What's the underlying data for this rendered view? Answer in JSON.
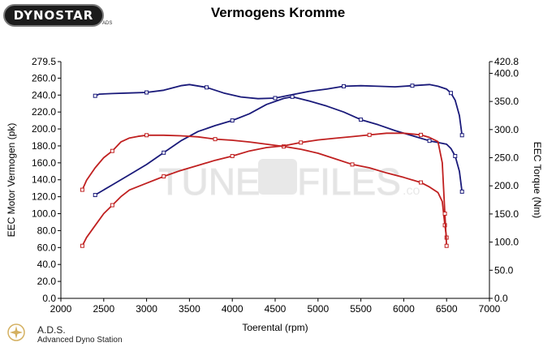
{
  "header": {
    "logo_text": "DYNOSTAR",
    "logo_sub": "ADS",
    "title": "Vermogens Kromme"
  },
  "footer": {
    "brand": "A.D.S.",
    "brand_sub": "Advanced Dyno Station"
  },
  "watermark": {
    "left": "TUNE",
    "right": "FILES",
    "suffix": ".co"
  },
  "chart_data": {
    "type": "line",
    "title": "Vermogens Kromme",
    "xlabel": "Toerental (rpm)",
    "ylabel": "EEC Motor Vermogen (pk)",
    "y2label": "EEC Torque (Nm)",
    "xlim": [
      2000,
      7000
    ],
    "ylim": [
      0,
      279.5
    ],
    "y2lim": [
      0,
      420.8
    ],
    "xticks": [
      "2000",
      "2500",
      "3000",
      "3500",
      "4000",
      "4500",
      "5000",
      "5500",
      "6000",
      "6500",
      "7000"
    ],
    "yticks": [
      "0.0",
      "20.0",
      "40.0",
      "60.0",
      "80.0",
      "100.0",
      "120.0",
      "140.0",
      "160.0",
      "180.0",
      "200.0",
      "220.0",
      "240.0",
      "260.0",
      "279.5"
    ],
    "y2ticks": [
      "0.0",
      "50.0",
      "100.0",
      "150.0",
      "200.0",
      "250.0",
      "300.0",
      "350.0",
      "400.0",
      "420.8"
    ],
    "grid": false,
    "series": [
      {
        "axis": "y2",
        "color": "#1a1a7a",
        "x": [
          2400,
          2450,
          2600,
          2800,
          3000,
          3200,
          3400,
          3500,
          3700,
          3900,
          4100,
          4300,
          4500,
          4700,
          4900,
          5100,
          5300,
          5500,
          5700,
          5900,
          6100,
          6300,
          6400,
          6500,
          6550,
          6600,
          6650,
          6680
        ],
        "y": [
          360,
          363,
          364,
          365,
          366,
          370,
          378,
          380,
          375,
          365,
          358,
          355,
          356,
          362,
          368,
          372,
          377,
          378,
          377,
          376,
          378,
          380,
          377,
          372,
          365,
          352,
          325,
          290
        ]
      },
      {
        "axis": "y",
        "color": "#1a1a7a",
        "x": [
          2400,
          2600,
          2800,
          3000,
          3200,
          3400,
          3600,
          3800,
          4000,
          4200,
          4400,
          4600,
          4700,
          4900,
          5100,
          5300,
          5500,
          5700,
          5900,
          6100,
          6300,
          6400,
          6500,
          6550,
          6600,
          6650,
          6680
        ],
        "y": [
          122,
          134,
          146,
          158,
          172,
          186,
          197,
          204,
          210,
          218,
          229,
          236,
          238,
          233,
          227,
          220,
          211,
          205,
          198,
          192,
          186,
          184,
          182,
          177,
          168,
          150,
          126
        ]
      },
      {
        "axis": "y2",
        "color": "#c02020",
        "x": [
          2250,
          2300,
          2400,
          2500,
          2600,
          2700,
          2800,
          2900,
          3000,
          3200,
          3400,
          3600,
          3800,
          4000,
          4200,
          4400,
          4600,
          4800,
          5000,
          5200,
          5400,
          5600,
          5800,
          6000,
          6200,
          6300,
          6400,
          6450,
          6480,
          6500
        ],
        "y": [
          193,
          210,
          232,
          250,
          262,
          278,
          285,
          288,
          290,
          290,
          289,
          287,
          283,
          281,
          278,
          274,
          270,
          265,
          258,
          248,
          238,
          232,
          223,
          215,
          206,
          198,
          188,
          172,
          130,
          108
        ]
      },
      {
        "axis": "y",
        "color": "#c02020",
        "x": [
          2250,
          2300,
          2400,
          2500,
          2600,
          2700,
          2800,
          3000,
          3200,
          3400,
          3600,
          3800,
          4000,
          4200,
          4400,
          4600,
          4800,
          5000,
          5200,
          5400,
          5600,
          5800,
          6000,
          6100,
          6200,
          6300,
          6400,
          6450,
          6480,
          6500
        ],
        "y": [
          62,
          72,
          86,
          100,
          110,
          120,
          128,
          136,
          144,
          151,
          157,
          163,
          168,
          174,
          178,
          180,
          184,
          187,
          189,
          191,
          193,
          195,
          195,
          194,
          193,
          190,
          185,
          160,
          100,
          62
        ]
      }
    ]
  }
}
